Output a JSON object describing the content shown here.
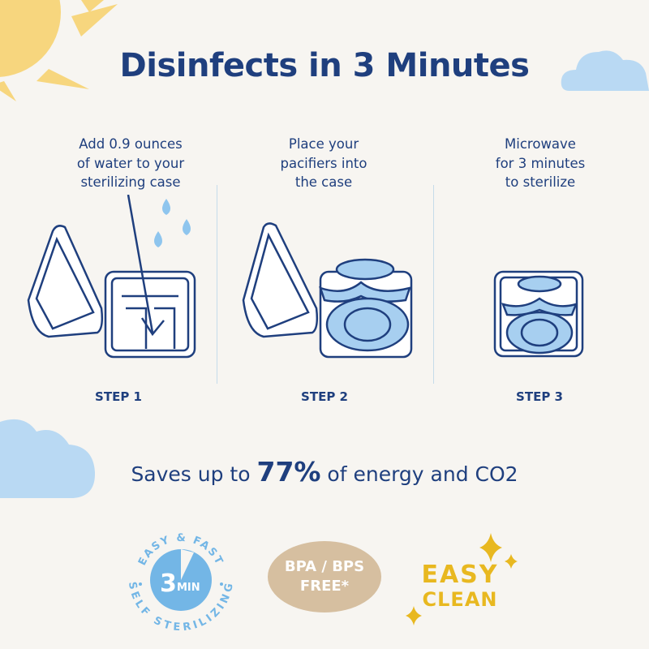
{
  "title": "Disinfects in 3 Minutes",
  "steps": [
    {
      "instruction_lines": [
        "Add 0.9 ounces",
        "of water to your",
        "sterilizing case"
      ],
      "label": "STEP 1"
    },
    {
      "instruction_lines": [
        "Place your",
        "pacifiers into",
        "the case"
      ],
      "label": "STEP 2"
    },
    {
      "instruction_lines": [
        "Microwave",
        "for 3 minutes",
        "to sterilize"
      ],
      "label": "STEP 3"
    }
  ],
  "savings": {
    "prefix": "Saves up to ",
    "value": "77%",
    "suffix": " of energy and CO2"
  },
  "badges": {
    "self_sterilizing": {
      "top_arc": "EASY & FAST",
      "bottom_arc": "SELF STERILIZING",
      "number": "3",
      "unit": "MIN"
    },
    "bpa": {
      "line1": "BPA / BPS",
      "line2": "FREE*"
    },
    "easy_clean": {
      "line1": "EASY",
      "line2": "CLEAN"
    }
  },
  "colors": {
    "background": "#f7f5f1",
    "navy": "#1f3f7e",
    "sky": "#b9d9f3",
    "sun": "#f7d67e",
    "badge_blue": "#73b6e6",
    "tan": "#d6bfa0",
    "gold": "#e8b820"
  }
}
